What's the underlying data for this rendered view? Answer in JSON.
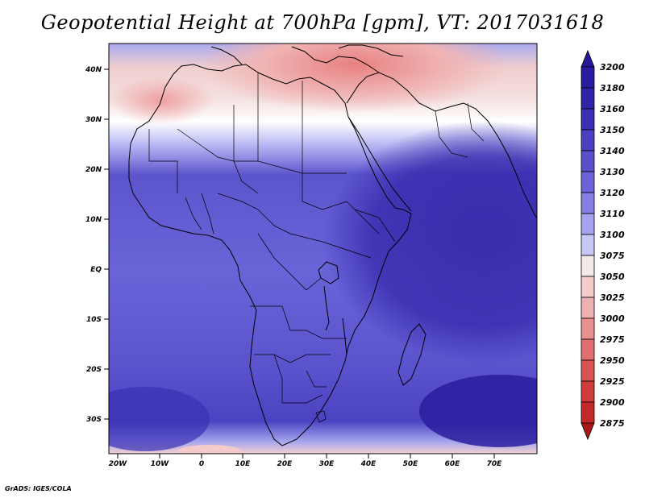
{
  "title": "Geopotential Height at 700hPa [gpm], VT: 2017031618",
  "footer": "GrADS: IGES/COLA",
  "map": {
    "lat_labels": [
      "40N",
      "30N",
      "20N",
      "10N",
      "EQ",
      "10S",
      "20S",
      "30S"
    ],
    "lon_labels": [
      "20W",
      "10W",
      "0",
      "10E",
      "20E",
      "30E",
      "40E",
      "50E",
      "60E",
      "70E"
    ]
  },
  "colorbar": {
    "levels": [
      "3200",
      "3180",
      "3160",
      "3150",
      "3140",
      "3130",
      "3120",
      "3110",
      "3100",
      "3075",
      "3050",
      "3025",
      "3000",
      "2975",
      "2950",
      "2925",
      "2900",
      "2875"
    ],
    "colors": [
      "#2a1ca0",
      "#2f24a8",
      "#3a30b4",
      "#4a40c0",
      "#5a50cc",
      "#6a64d8",
      "#8480e4",
      "#a4a4f0",
      "#c8c8f8",
      "#f4e8e8",
      "#f4cccc",
      "#eeb0b0",
      "#e89090",
      "#e07070",
      "#d85454",
      "#d03c3c",
      "#c42828",
      "#b41c1c"
    ],
    "top_arrow_color": "#28189a",
    "bottom_arrow_color": "#a81818"
  }
}
